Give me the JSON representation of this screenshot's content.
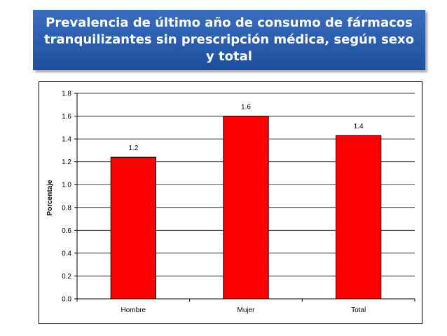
{
  "title": "Prevalencia de último año de consumo de fármacos tranquilizantes sin prescripción médica, según sexo y total",
  "chart_data": {
    "type": "bar",
    "categories": [
      "Hombre",
      "Mujer",
      "Total"
    ],
    "values": [
      1.24,
      1.6,
      1.43
    ],
    "data_labels": [
      "1.2",
      "1.6",
      "1.4"
    ],
    "ylabel": "Porcentaje",
    "xlabel": "",
    "ylim": [
      0,
      1.8
    ],
    "ytick_step": 0.2,
    "yticks": [
      "0.0",
      "0.2",
      "0.4",
      "0.6",
      "0.8",
      "1.0",
      "1.2",
      "1.4",
      "1.6",
      "1.8"
    ],
    "grid": true,
    "legend": "none",
    "bar_color": "#ff0000",
    "bar_edge_color": "#000000"
  }
}
